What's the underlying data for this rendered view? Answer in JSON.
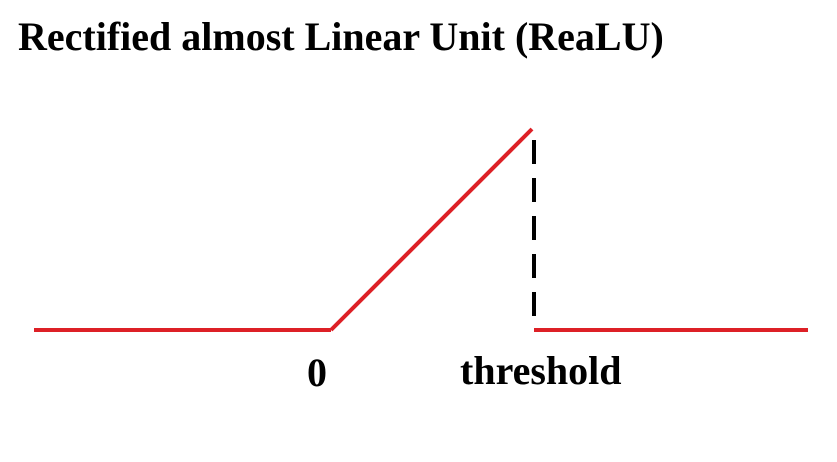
{
  "title": "Rectified almost Linear Unit (ReaLU)",
  "labels": {
    "zero": "0",
    "threshold": "threshold"
  },
  "colors": {
    "curve": "#dd2026",
    "dashed": "#000000",
    "text": "#000000",
    "background": "#ffffff"
  },
  "function": {
    "segments": [
      {
        "name": "left-flat",
        "from": "-inf",
        "to": "0",
        "output": "0"
      },
      {
        "name": "linear-ramp",
        "from": "0",
        "to": "threshold",
        "output": "x"
      },
      {
        "name": "right-flat",
        "from": "threshold",
        "to": "+inf",
        "output": "0"
      }
    ]
  }
}
